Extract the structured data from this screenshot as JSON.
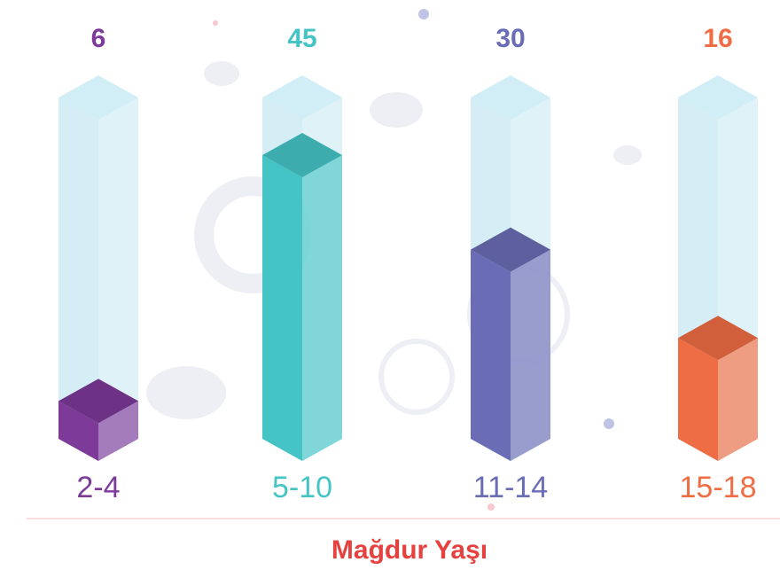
{
  "chart_data": {
    "type": "bar",
    "x_label": "Mağdur Yaşı",
    "categories": [
      "2-4",
      "5-10",
      "11-14",
      "15-18"
    ],
    "values": [
      6,
      45,
      30,
      16
    ],
    "colors": [
      "#7d3a99",
      "#45c4c6",
      "#6a6db5",
      "#ee6d44"
    ]
  }
}
